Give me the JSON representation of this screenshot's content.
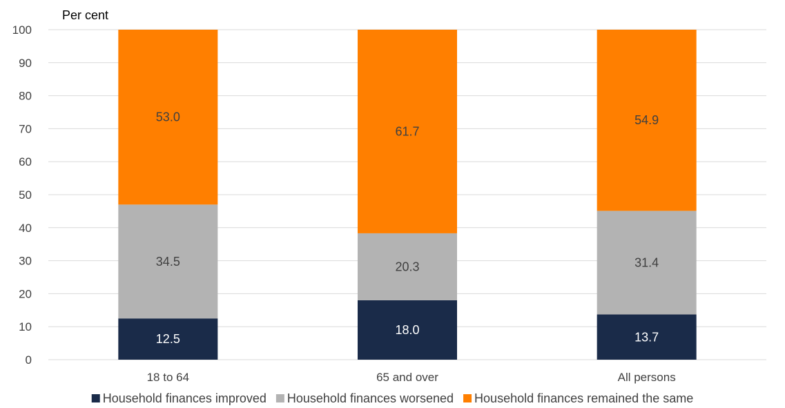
{
  "chart_data": {
    "type": "bar",
    "stacked": true,
    "ylabel": "Per cent",
    "ylim": [
      0,
      100
    ],
    "yticks": [
      0,
      10,
      20,
      30,
      40,
      50,
      60,
      70,
      80,
      90,
      100
    ],
    "grid": true,
    "legend_position": "bottom",
    "categories": [
      "18 to 64",
      "65 and over",
      "All persons"
    ],
    "series": [
      {
        "name": "Household finances improved",
        "values": [
          12.5,
          18.0,
          13.7
        ],
        "color": "#1a2b49",
        "label_color": "#ffffff"
      },
      {
        "name": "Household finances worsened",
        "values": [
          34.5,
          20.3,
          31.4
        ],
        "color": "#b3b3b3",
        "label_color": "#404040"
      },
      {
        "name": "Household finances remained the same",
        "values": [
          53.0,
          61.7,
          54.9
        ],
        "color": "#ff7f00",
        "label_color": "#404040"
      }
    ]
  }
}
